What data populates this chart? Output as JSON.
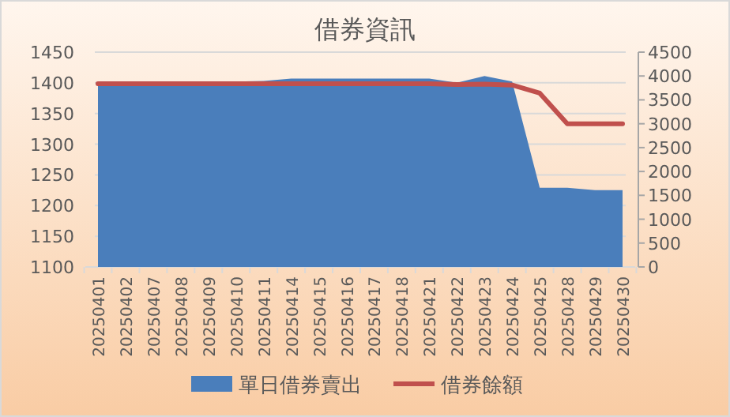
{
  "chart_data": {
    "type": "area",
    "title": "借券資訊",
    "categories": [
      "20250401",
      "20250402",
      "20250407",
      "20250408",
      "20250409",
      "20250410",
      "20250411",
      "20250414",
      "20250415",
      "20250416",
      "20250417",
      "20250418",
      "20250421",
      "20250422",
      "20250423",
      "20250424",
      "20250425",
      "20250428",
      "20250429",
      "20250430"
    ],
    "series": [
      {
        "name": "單日借券賣出",
        "color": "#4a7ebb",
        "values": [
          1402,
          1402,
          1402,
          1402,
          1402,
          1402,
          1403,
          1407,
          1407,
          1407,
          1407,
          1407,
          1407,
          1400,
          1411,
          1402,
          1229,
          1229,
          1225,
          1225
        ]
      },
      {
        "name": "借券餘額",
        "type": "line",
        "axis": "y2",
        "color": "#c0504d",
        "values": [
          3840,
          3840,
          3840,
          3840,
          3840,
          3840,
          3840,
          3840,
          3840,
          3840,
          3840,
          3840,
          3840,
          3820,
          3830,
          3810,
          3640,
          3000,
          3000,
          3000
        ]
      }
    ],
    "ylim": [
      1100,
      1450
    ],
    "yticks": [
      1100,
      1150,
      1200,
      1250,
      1300,
      1350,
      1400,
      1450
    ],
    "y2lim": [
      0,
      4500
    ],
    "y2ticks": [
      0,
      500,
      1000,
      1500,
      2000,
      2500,
      3000,
      3500,
      4000,
      4500
    ],
    "grid": "y",
    "legend": "bottom"
  }
}
